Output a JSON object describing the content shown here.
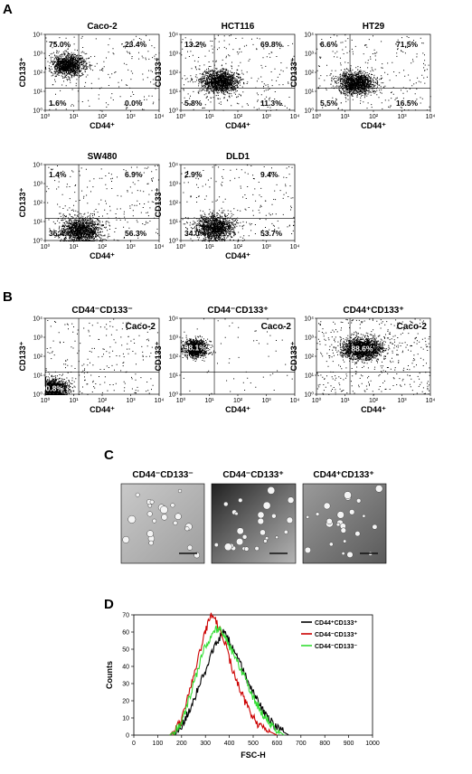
{
  "panels": {
    "a": "A",
    "b": "B",
    "c": "C",
    "d": "D"
  },
  "colors": {
    "dots": "#000000",
    "white_label": "#ffffff",
    "series_pos": "#000000",
    "series_neg_pos": "#cc0000",
    "series_neg_neg": "#33dd33"
  },
  "chart_data": [
    {
      "id": "caco2",
      "type": "scatter",
      "title": "Caco-2",
      "xlabel": "CD44⁺",
      "ylabel": "CD133⁺",
      "xlim": [
        1,
        10000
      ],
      "ylim": [
        1,
        10000
      ],
      "log_scale": true,
      "ticks": [
        "10⁰",
        "10¹",
        "10²",
        "10³",
        "10⁴"
      ],
      "gate": {
        "x": 15,
        "y": 15
      },
      "quadrants": {
        "ul": "75.0%",
        "ur": "23.4%",
        "ll": "1.6%",
        "lr": "0.0%"
      },
      "cloud_center_log": [
        0.8,
        2.4
      ]
    },
    {
      "id": "hct116",
      "type": "scatter",
      "title": "HCT116",
      "xlabel": "CD44⁺",
      "ylabel": "CD133⁺",
      "xlim": [
        1,
        10000
      ],
      "ylim": [
        1,
        10000
      ],
      "log_scale": true,
      "ticks": [
        "10⁰",
        "10¹",
        "10²",
        "10³",
        "10⁴"
      ],
      "gate": {
        "x": 15,
        "y": 15
      },
      "quadrants": {
        "ul": "13.2%",
        "ur": "69.8%",
        "ll": "5.8%",
        "lr": "11.3%"
      },
      "cloud_center_log": [
        1.35,
        1.55
      ]
    },
    {
      "id": "ht29",
      "type": "scatter",
      "title": "HT29",
      "xlabel": "CD44⁺",
      "ylabel": "CD133⁺",
      "xlim": [
        1,
        10000
      ],
      "ylim": [
        1,
        10000
      ],
      "log_scale": true,
      "ticks": [
        "10⁰",
        "10¹",
        "10²",
        "10³",
        "10⁴"
      ],
      "gate": {
        "x": 15,
        "y": 15
      },
      "quadrants": {
        "ul": "6.6%",
        "ur": "71.5%",
        "ll": "5.5%",
        "lr": "16.5%"
      },
      "cloud_center_log": [
        1.4,
        1.45
      ]
    },
    {
      "id": "sw480",
      "type": "scatter",
      "title": "SW480",
      "xlabel": "CD44⁺",
      "ylabel": "CD133⁺",
      "xlim": [
        1,
        10000
      ],
      "ylim": [
        1,
        10000
      ],
      "log_scale": true,
      "ticks": [
        "10⁰",
        "10¹",
        "10²",
        "10³",
        "10⁴"
      ],
      "gate": {
        "x": 15,
        "y": 15
      },
      "quadrants": {
        "ul": "1.4%",
        "ur": "6.9%",
        "ll": "35.4%",
        "lr": "56.3%"
      },
      "cloud_center_log": [
        1.25,
        0.55
      ]
    },
    {
      "id": "dld1",
      "type": "scatter",
      "title": "DLD1",
      "xlabel": "CD44⁺",
      "ylabel": "CD133⁺",
      "xlim": [
        1,
        10000
      ],
      "ylim": [
        1,
        10000
      ],
      "log_scale": true,
      "ticks": [
        "10⁰",
        "10¹",
        "10²",
        "10³",
        "10⁴"
      ],
      "gate": {
        "x": 15,
        "y": 15
      },
      "quadrants": {
        "ul": "2.9%",
        "ur": "9.4%",
        "ll": "34.0%",
        "lr": "53.7%"
      },
      "cloud_center_log": [
        1.2,
        0.7
      ]
    },
    {
      "id": "neg_neg",
      "type": "scatter",
      "title": "CD44⁻CD133⁻",
      "subtitle": "Caco-2",
      "xlabel": "CD44⁺",
      "ylabel": "CD133⁺",
      "xlim": [
        1,
        10000
      ],
      "ylim": [
        1,
        10000
      ],
      "log_scale": true,
      "ticks": [
        "10⁰",
        "10¹",
        "10²",
        "10³",
        "10⁴"
      ],
      "gate": {
        "x": 15,
        "y": 15
      },
      "main_pct": "90.8%",
      "cloud_center_log": [
        0.25,
        0.3
      ]
    },
    {
      "id": "neg_pos",
      "type": "scatter",
      "title": "CD44⁻CD133⁺",
      "subtitle": "Caco-2",
      "xlabel": "CD44⁺",
      "ylabel": "CD133⁺",
      "xlim": [
        1,
        10000
      ],
      "ylim": [
        1,
        10000
      ],
      "log_scale": true,
      "ticks": [
        "10⁰",
        "10¹",
        "10²",
        "10³",
        "10⁴"
      ],
      "gate": {
        "x": 15,
        "y": 15
      },
      "main_pct": "98.1%",
      "cloud_center_log": [
        0.5,
        2.45
      ]
    },
    {
      "id": "pos_pos",
      "type": "scatter",
      "title": "CD44⁺CD133⁺",
      "subtitle": "Caco-2",
      "xlabel": "CD44⁺",
      "ylabel": "CD133⁺",
      "xlim": [
        1,
        10000
      ],
      "ylim": [
        1,
        10000
      ],
      "log_scale": true,
      "ticks": [
        "10⁰",
        "10¹",
        "10²",
        "10³",
        "10⁴"
      ],
      "gate": {
        "x": 15,
        "y": 15
      },
      "main_pct": "88.6%",
      "cloud_center_log": [
        1.6,
        2.4
      ]
    },
    {
      "id": "histogram",
      "type": "line",
      "xlabel": "FSC-H",
      "ylabel": "Counts",
      "xlim": [
        0,
        1000
      ],
      "ylim": [
        0,
        70
      ],
      "xticks": [
        0,
        100,
        200,
        300,
        400,
        500,
        600,
        700,
        800,
        900,
        1000
      ],
      "yticks": [
        0,
        10,
        20,
        30,
        40,
        50,
        60,
        70
      ],
      "legend_position": "top-right",
      "series": [
        {
          "name": "CD44⁺CD133⁺",
          "color": "#000000",
          "x": [
            150,
            200,
            250,
            300,
            350,
            380,
            400,
            450,
            500,
            550,
            600,
            650
          ],
          "y": [
            0,
            5,
            20,
            38,
            55,
            60,
            55,
            40,
            25,
            12,
            4,
            0
          ]
        },
        {
          "name": "CD44⁻CD133⁺",
          "color": "#cc0000",
          "x": [
            150,
            200,
            250,
            300,
            320,
            340,
            380,
            420,
            470,
            520,
            570,
            600
          ],
          "y": [
            0,
            8,
            35,
            60,
            69,
            68,
            55,
            35,
            18,
            6,
            2,
            0
          ]
        },
        {
          "name": "CD44⁻CD133⁻",
          "color": "#33dd33",
          "x": [
            150,
            200,
            250,
            300,
            340,
            370,
            400,
            450,
            500,
            550,
            600,
            630
          ],
          "y": [
            0,
            6,
            30,
            52,
            62,
            60,
            52,
            38,
            22,
            10,
            3,
            0
          ]
        }
      ]
    }
  ],
  "images": [
    {
      "title": "CD44⁻CD133⁻",
      "tone": "light"
    },
    {
      "title": "CD44⁻CD133⁺",
      "tone": "dark"
    },
    {
      "title": "CD44⁺CD133⁺",
      "tone": "medium"
    }
  ]
}
